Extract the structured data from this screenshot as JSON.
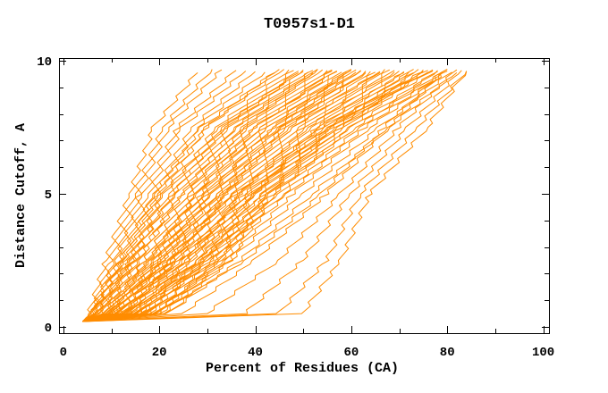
{
  "chart_data": {
    "type": "line",
    "title": "T0957s1-D1",
    "xlabel": "Percent of Residues (CA)",
    "ylabel": "Distance Cutoff, A",
    "xlim": [
      0,
      100
    ],
    "ylim": [
      0,
      10
    ],
    "x_major_ticks": [
      0,
      20,
      40,
      60,
      80,
      100
    ],
    "x_minor_ticks": [
      10,
      30,
      50,
      70,
      90
    ],
    "y_major_ticks": [
      0,
      5,
      10
    ],
    "y_minor_ticks": [
      1,
      2,
      3,
      4,
      6,
      7,
      8,
      9
    ],
    "grid": false,
    "legend": false,
    "background": "#FFFFFF",
    "axis_color": "#000000",
    "curve_color": "#FF8C00",
    "curve_start": [
      4.0,
      0.2
    ],
    "curve_top_y": 9.65,
    "anchor_cutoffs": [
      0.5,
      2.5,
      5.0,
      7.5,
      9.65
    ],
    "curves": [
      [
        5.5,
        9,
        14,
        19,
        28
      ],
      [
        6,
        10,
        15,
        21,
        31
      ],
      [
        6,
        11,
        16,
        22,
        33
      ],
      [
        6.5,
        11,
        17,
        24,
        36
      ],
      [
        7,
        12,
        18,
        25,
        38
      ],
      [
        6,
        12,
        19,
        27,
        40
      ],
      [
        7,
        13,
        20,
        28,
        42
      ],
      [
        7.5,
        14,
        21,
        30,
        44
      ],
      [
        6,
        13,
        20,
        30,
        46
      ],
      [
        8,
        15,
        22,
        32,
        47
      ],
      [
        7,
        14,
        23,
        33,
        48
      ],
      [
        9,
        16,
        24,
        34,
        49
      ],
      [
        8,
        15,
        25,
        35,
        50
      ],
      [
        10,
        17,
        26,
        36,
        51
      ],
      [
        9,
        18,
        27,
        37,
        52
      ],
      [
        11,
        19,
        28,
        38,
        53
      ],
      [
        10,
        18,
        28,
        39,
        54
      ],
      [
        12,
        20,
        29,
        40,
        55
      ],
      [
        11,
        21,
        30,
        41,
        56
      ],
      [
        13,
        22,
        31,
        42,
        57
      ],
      [
        12,
        21,
        31,
        43,
        58
      ],
      [
        14,
        23,
        32,
        44,
        59
      ],
      [
        13,
        24,
        33,
        45,
        60
      ],
      [
        15,
        25,
        34,
        46,
        61
      ],
      [
        14,
        24,
        34,
        47,
        62
      ],
      [
        16,
        26,
        35,
        48,
        63
      ],
      [
        15,
        27,
        36,
        49,
        64
      ],
      [
        17,
        28,
        37,
        50,
        65
      ],
      [
        16,
        27,
        37,
        51,
        66
      ],
      [
        18,
        29,
        38,
        52,
        67
      ],
      [
        17,
        30,
        39,
        53,
        68
      ],
      [
        19,
        31,
        40,
        54,
        69
      ],
      [
        18,
        30,
        40,
        55,
        70
      ],
      [
        20,
        32,
        41,
        56,
        71
      ],
      [
        19,
        33,
        42,
        57,
        72
      ],
      [
        21,
        34,
        43,
        58,
        73
      ],
      [
        20,
        33,
        43,
        59,
        74
      ],
      [
        22,
        35,
        44,
        60,
        75
      ],
      [
        12,
        25,
        38,
        55,
        76
      ],
      [
        14,
        28,
        42,
        58,
        77
      ],
      [
        16,
        30,
        45,
        60,
        78
      ],
      [
        13,
        26,
        40,
        57,
        76
      ],
      [
        15,
        29,
        44,
        61,
        79
      ],
      [
        18,
        32,
        47,
        63,
        80
      ],
      [
        11,
        24,
        39,
        56,
        77
      ],
      [
        17,
        31,
        46,
        62,
        78
      ],
      [
        19,
        34,
        48,
        64,
        80
      ],
      [
        10,
        22,
        36,
        54,
        75
      ],
      [
        20,
        35,
        50,
        66,
        81
      ],
      [
        22,
        37,
        52,
        68,
        82
      ],
      [
        25,
        40,
        55,
        68,
        80
      ],
      [
        30,
        45,
        58,
        70,
        82
      ],
      [
        38,
        50,
        60,
        72,
        83
      ],
      [
        45,
        55,
        62,
        74,
        84
      ],
      [
        50,
        58,
        64,
        76,
        84
      ],
      [
        20,
        38,
        54,
        67,
        79
      ],
      [
        8,
        14,
        21,
        33,
        49
      ],
      [
        9,
        17,
        26,
        38,
        53
      ],
      [
        10,
        19,
        29,
        41,
        56
      ],
      [
        11,
        20,
        30,
        44,
        60
      ],
      [
        12,
        22,
        33,
        46,
        62
      ],
      [
        13,
        23,
        35,
        48,
        66
      ],
      [
        14,
        26,
        37,
        51,
        69
      ],
      [
        15,
        28,
        40,
        53,
        71
      ],
      [
        6.5,
        12.5,
        19,
        29,
        45
      ],
      [
        7.5,
        14.5,
        23,
        34,
        50
      ],
      [
        8.5,
        16,
        25,
        36,
        52
      ],
      [
        9.5,
        18,
        28,
        40,
        57
      ],
      [
        10.5,
        19.5,
        31,
        43,
        59
      ],
      [
        11.5,
        21,
        32,
        45,
        61
      ],
      [
        12.5,
        23,
        34,
        47,
        63
      ],
      [
        16,
        29,
        43,
        56,
        73
      ]
    ]
  }
}
